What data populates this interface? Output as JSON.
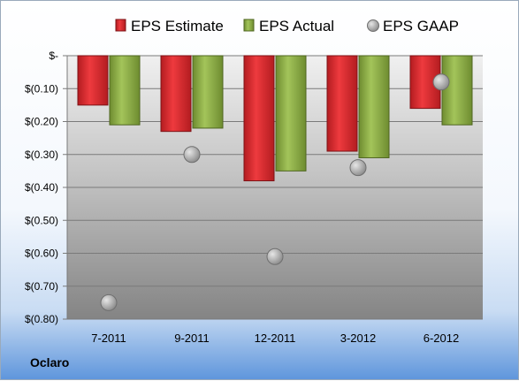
{
  "company_label": "Oclaro",
  "chart_data": {
    "type": "bar",
    "categories": [
      "7-2011",
      "9-2011",
      "12-2011",
      "3-2012",
      "6-2012"
    ],
    "series": [
      {
        "name": "EPS Estimate",
        "kind": "bar",
        "color": "#e0282e",
        "values": [
          -0.15,
          -0.23,
          -0.38,
          -0.29,
          -0.16
        ]
      },
      {
        "name": "EPS Actual",
        "kind": "bar",
        "color": "#8fb048",
        "values": [
          -0.21,
          -0.22,
          -0.35,
          -0.31,
          -0.21
        ]
      },
      {
        "name": "EPS GAAP",
        "kind": "scatter",
        "color": "#a8a8a8",
        "values": [
          -0.75,
          -0.3,
          -0.61,
          -0.34,
          -0.08
        ]
      }
    ],
    "yticks": [
      0,
      -0.1,
      -0.2,
      -0.3,
      -0.4,
      -0.5,
      -0.6,
      -0.7,
      -0.8
    ],
    "ytick_labels": [
      "$-",
      "$(0.10)",
      "$(0.20)",
      "$(0.30)",
      "$(0.40)",
      "$(0.50)",
      "$(0.60)",
      "$(0.70)",
      "$(0.80)"
    ],
    "ylim": [
      -0.8,
      0
    ],
    "grid": true,
    "legend_position": "top"
  }
}
